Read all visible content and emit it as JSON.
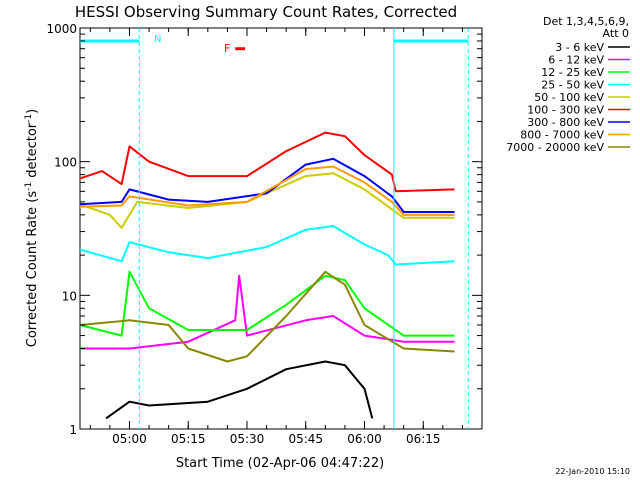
{
  "chart_data": {
    "type": "line",
    "title": "HESSI Observing Summary Count Rates, Corrected",
    "xlabel": "Start Time (02-Apr-06 04:47:22)",
    "ylabel": "Corrected Count Rate (s",
    "ylabel_sup1": "-1",
    "ylabel_mid": " detector",
    "ylabel_sup2": "-1",
    "ylabel_end": ")",
    "yscale": "log",
    "ylim": [
      1,
      1000
    ],
    "xlim": [
      "04:47:22",
      "06:30:00"
    ],
    "x_ticks": [
      "05:00",
      "05:15",
      "05:30",
      "05:45",
      "06:00",
      "06:15"
    ],
    "y_ticks": [
      "1",
      "10",
      "100",
      "1000"
    ],
    "grid": false,
    "legend_position": "right",
    "legend_header": [
      "Det 1,3,4,5,6,9,",
      "Att 0"
    ],
    "annotations": {
      "flare_flag": "F",
      "night_flag": "N",
      "timestamp": "22-Jan-2010 15:10"
    },
    "attenuator_markers": {
      "night_intervals": [
        [
          "04:47:22",
          "05:02:30"
        ],
        [
          "06:07:30",
          "06:26:30"
        ]
      ],
      "night_level": 800,
      "color": "#00ffff"
    },
    "flare_marker": {
      "start": "05:27:00",
      "end": "05:29:30",
      "y": 700,
      "color": "#ff0000"
    },
    "series": [
      {
        "name": "3 - 6 keV",
        "color": "#000000",
        "points": [
          [
            "04:54",
            "1.2"
          ],
          [
            "05:00",
            "1.6"
          ],
          [
            "05:05",
            "1.5"
          ],
          [
            "05:20",
            "1.6"
          ],
          [
            "05:30",
            "2.0"
          ],
          [
            "05:40",
            "2.8"
          ],
          [
            "05:50",
            "3.2"
          ],
          [
            "05:55",
            "3.0"
          ],
          [
            "06:00",
            "2.0"
          ],
          [
            "06:02",
            "1.2"
          ]
        ]
      },
      {
        "name": "6 - 12 keV",
        "color": "#ff00ff",
        "points": [
          [
            "04:47:22",
            "4"
          ],
          [
            "05:00",
            "4"
          ],
          [
            "05:15",
            "4.5"
          ],
          [
            "05:27",
            "6.5"
          ],
          [
            "05:28",
            "14"
          ],
          [
            "05:30",
            "5"
          ],
          [
            "05:45",
            "6.5"
          ],
          [
            "05:52",
            "7"
          ],
          [
            "06:00",
            "5"
          ],
          [
            "06:10",
            "4.5"
          ],
          [
            "06:23",
            "4.5"
          ]
        ]
      },
      {
        "name": "12 - 25 keV",
        "color": "#00ff00",
        "points": [
          [
            "04:47:22",
            "6"
          ],
          [
            "04:58",
            "5"
          ],
          [
            "05:00",
            "15"
          ],
          [
            "05:05",
            "8"
          ],
          [
            "05:15",
            "5.5"
          ],
          [
            "05:30",
            "5.5"
          ],
          [
            "05:40",
            "8.5"
          ],
          [
            "05:50",
            "14"
          ],
          [
            "05:55",
            "13"
          ],
          [
            "06:00",
            "8"
          ],
          [
            "06:10",
            "5"
          ],
          [
            "06:23",
            "5"
          ]
        ]
      },
      {
        "name": "25 - 50 keV",
        "color": "#00ffff",
        "points": [
          [
            "04:47:22",
            "22"
          ],
          [
            "04:58",
            "18"
          ],
          [
            "05:00",
            "25"
          ],
          [
            "05:10",
            "21"
          ],
          [
            "05:20",
            "19"
          ],
          [
            "05:35",
            "23"
          ],
          [
            "05:45",
            "31"
          ],
          [
            "05:52",
            "33"
          ],
          [
            "06:00",
            "24"
          ],
          [
            "06:06",
            "20"
          ],
          [
            "06:08",
            "17"
          ],
          [
            "06:23",
            "18"
          ]
        ]
      },
      {
        "name": "50 - 100 keV",
        "color": "#cccc00",
        "points": [
          [
            "04:47:22",
            "48"
          ],
          [
            "04:55",
            "40"
          ],
          [
            "04:58",
            "32"
          ],
          [
            "05:02",
            "50"
          ],
          [
            "05:15",
            "45"
          ],
          [
            "05:30",
            "50"
          ],
          [
            "05:45",
            "78"
          ],
          [
            "05:52",
            "82"
          ],
          [
            "06:00",
            "62"
          ],
          [
            "06:07",
            "44"
          ],
          [
            "06:10",
            "38"
          ],
          [
            "06:23",
            "38"
          ]
        ]
      },
      {
        "name": "100 - 300 keV",
        "color": "#ff0000",
        "points": [
          [
            "04:47:22",
            "75"
          ],
          [
            "04:53",
            "85"
          ],
          [
            "04:58",
            "68"
          ],
          [
            "05:00",
            "130"
          ],
          [
            "05:05",
            "100"
          ],
          [
            "05:15",
            "78"
          ],
          [
            "05:30",
            "78"
          ],
          [
            "05:40",
            "120"
          ],
          [
            "05:50",
            "165"
          ],
          [
            "05:55",
            "155"
          ],
          [
            "06:00",
            "112"
          ],
          [
            "06:07",
            "80"
          ],
          [
            "06:08",
            "60"
          ],
          [
            "06:23",
            "62"
          ]
        ]
      },
      {
        "name": "300 - 800 keV",
        "color": "#0000ff",
        "points": [
          [
            "04:47:22",
            "48"
          ],
          [
            "04:58",
            "50"
          ],
          [
            "05:00",
            "62"
          ],
          [
            "05:10",
            "52"
          ],
          [
            "05:20",
            "50"
          ],
          [
            "05:35",
            "58"
          ],
          [
            "05:45",
            "95"
          ],
          [
            "05:52",
            "105"
          ],
          [
            "06:00",
            "78"
          ],
          [
            "06:07",
            "55"
          ],
          [
            "06:10",
            "42"
          ],
          [
            "06:23",
            "42"
          ]
        ]
      },
      {
        "name": "800 - 7000 keV",
        "color": "#ff9900",
        "points": [
          [
            "04:47:22",
            "46"
          ],
          [
            "04:58",
            "47"
          ],
          [
            "05:00",
            "55"
          ],
          [
            "05:15",
            "47"
          ],
          [
            "05:30",
            "50"
          ],
          [
            "05:45",
            "88"
          ],
          [
            "05:52",
            "92"
          ],
          [
            "06:00",
            "70"
          ],
          [
            "06:07",
            "50"
          ],
          [
            "06:10",
            "40"
          ],
          [
            "06:23",
            "40"
          ]
        ]
      },
      {
        "name": "7000 - 20000 keV",
        "color": "#888800",
        "points": [
          [
            "04:47:22",
            "6"
          ],
          [
            "05:00",
            "6.5"
          ],
          [
            "05:10",
            "6"
          ],
          [
            "05:15",
            "4"
          ],
          [
            "05:25",
            "3.2"
          ],
          [
            "05:30",
            "3.5"
          ],
          [
            "05:40",
            "7"
          ],
          [
            "05:50",
            "15"
          ],
          [
            "05:55",
            "12"
          ],
          [
            "06:00",
            "6"
          ],
          [
            "06:10",
            "4"
          ],
          [
            "06:23",
            "3.8"
          ]
        ]
      }
    ]
  }
}
